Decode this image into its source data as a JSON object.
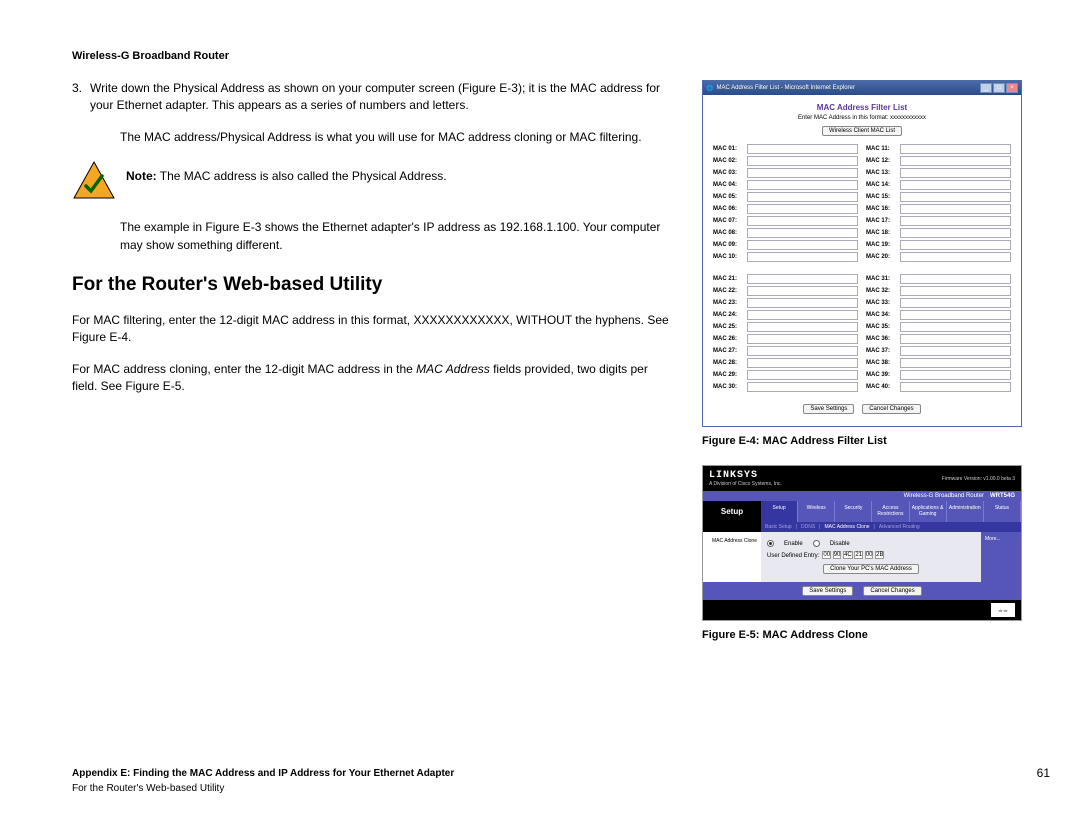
{
  "header": {
    "title": "Wireless-G Broadband Router"
  },
  "step": {
    "number": "3.",
    "text": "Write down the Physical Address as shown on your computer screen (Figure E-3); it is the MAC address for your Ethernet adapter. This appears as a series of numbers and letters."
  },
  "para1": "The MAC address/Physical Address is what you will use for MAC address cloning or MAC filtering.",
  "note": {
    "label": "Note:",
    "text": " The MAC address is also called the Physical Address."
  },
  "para2": "The example in Figure E-3 shows the Ethernet adapter's IP address as 192.168.1.100. Your computer may show something different.",
  "heading": "For the Router's Web-based Utility",
  "para3": "For MAC filtering, enter the 12-digit MAC address in this format, XXXXXXXXXXXX, WITHOUT the hyphens. See Figure E-4.",
  "para4_a": "For MAC address cloning, enter the 12-digit MAC address in the ",
  "para4_i": "MAC Address",
  "para4_b": " fields provided, two digits per field. See Figure E-5.",
  "figE4": {
    "titlebar": "MAC Address Filter List - Microsoft Internet Explorer",
    "heading": "MAC Address Filter List",
    "sub": "Enter MAC Address in this format: xxxxxxxxxxxx",
    "wireless_btn": "Wireless Client MAC List",
    "left_labels": [
      "MAC 01:",
      "MAC 02:",
      "MAC 03:",
      "MAC 04:",
      "MAC 05:",
      "MAC 06:",
      "MAC 07:",
      "MAC 08:",
      "MAC 09:",
      "MAC 10:"
    ],
    "right_labels": [
      "MAC 11:",
      "MAC 12:",
      "MAC 13:",
      "MAC 14:",
      "MAC 15:",
      "MAC 16:",
      "MAC 17:",
      "MAC 18:",
      "MAC 19:",
      "MAC 20:"
    ],
    "left_labels2": [
      "MAC 21:",
      "MAC 22:",
      "MAC 23:",
      "MAC 24:",
      "MAC 25:",
      "MAC 26:",
      "MAC 27:",
      "MAC 28:",
      "MAC 29:",
      "MAC 30:"
    ],
    "right_labels2": [
      "MAC 31:",
      "MAC 32:",
      "MAC 33:",
      "MAC 34:",
      "MAC 35:",
      "MAC 36:",
      "MAC 37:",
      "MAC 38:",
      "MAC 39:",
      "MAC 40:"
    ],
    "save_btn": "Save Settings",
    "cancel_btn": "Cancel Changes",
    "caption": "Figure E-4: MAC Address Filter List"
  },
  "figE5": {
    "logo": "LINKSYS",
    "sublogo": "A Division of Cisco Systems, Inc.",
    "firmware": "Firmware Version: v1.00.0 beta 3",
    "product_bar": "Wireless-G Broadband Router",
    "model": "WRT54G",
    "setup_label": "Setup",
    "tabs": [
      "Setup",
      "Wireless",
      "Security",
      "Access Restrictions",
      "Applications & Gaming",
      "Administration",
      "Status"
    ],
    "subtabs": [
      "Basic Setup",
      "DDNS",
      "MAC Address Clone",
      "Advanced Routing"
    ],
    "side_label": "MAC Address Clone",
    "more": "More...",
    "enable": "Enable",
    "disable": "Disable",
    "entry_label": "User Defined Entry:",
    "hex": [
      "00",
      "90",
      "4C",
      "21",
      "00",
      "2B"
    ],
    "clone_btn": "Clone Your PC's MAC Address",
    "save_btn": "Save Settings",
    "cancel_btn": "Cancel Changes",
    "cisco": "CISCO SYSTEMS",
    "caption": "Figure E-5: MAC Address Clone"
  },
  "footer": {
    "line1": "Appendix E: Finding the MAC Address and IP Address for Your Ethernet Adapter",
    "line2": "For the Router's Web-based Utility",
    "page": "61"
  },
  "colors": {
    "linksys_purple": "#5656b8",
    "titlebar_blue": "#4a6aa8",
    "heading_purple": "#5a3a98",
    "warning_yellow": "#f5a623",
    "warning_check": "#006600"
  }
}
